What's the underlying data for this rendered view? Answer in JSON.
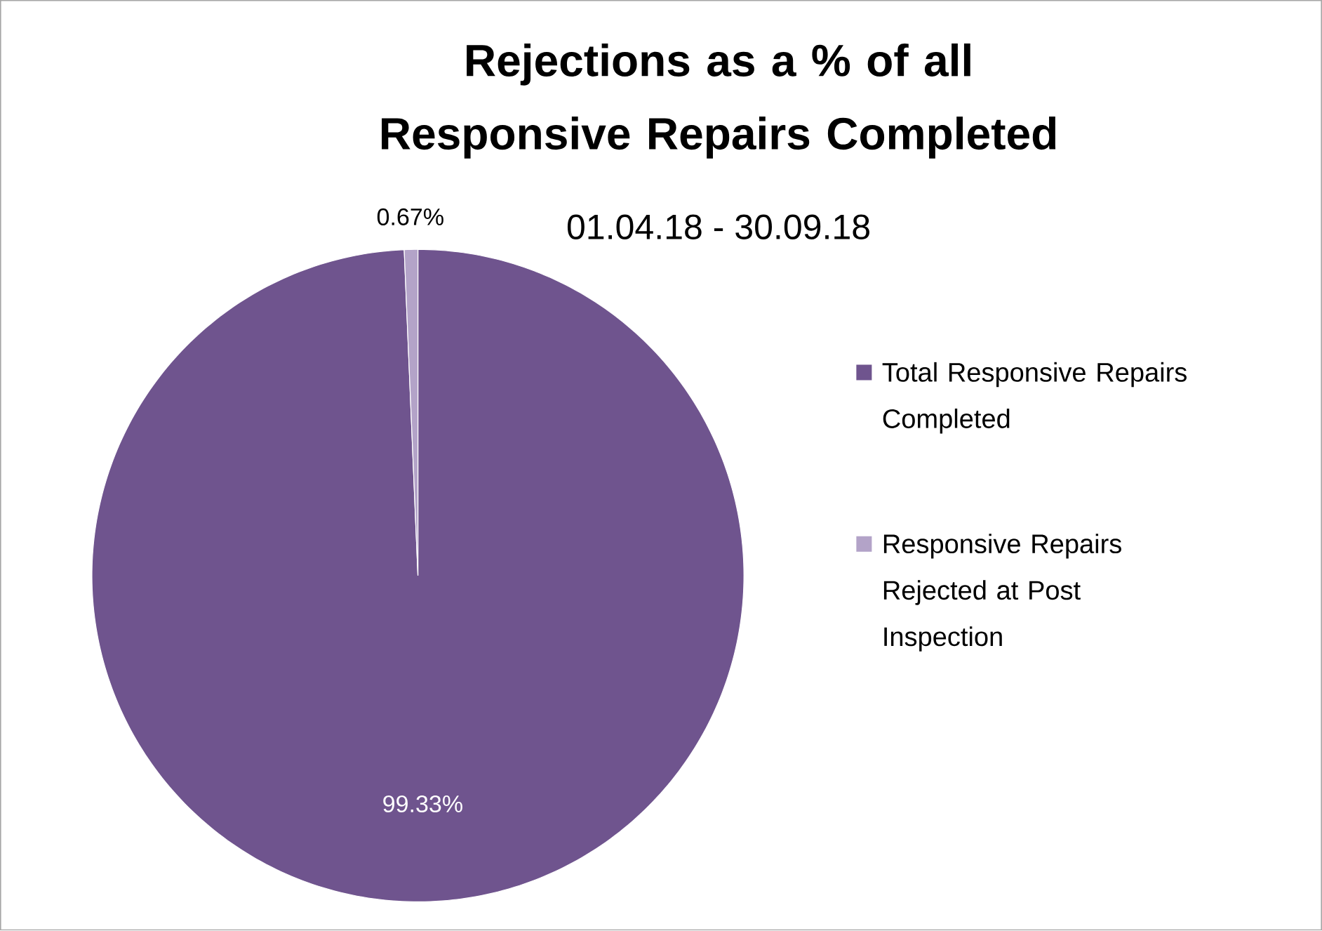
{
  "chart_data": {
    "type": "pie",
    "title": "Rejections as a % of all Responsive Repairs Completed",
    "subtitle": "01.04.18 - 30.09.18",
    "categories": [
      "Total Responsive Repairs Completed",
      "Responsive Repairs Rejected at Post Inspection"
    ],
    "values": [
      99.33,
      0.67
    ],
    "colors": [
      "#6f548e",
      "#b3a3c8"
    ],
    "value_labels": [
      "99.33%",
      "0.67%"
    ],
    "legend": "right"
  }
}
